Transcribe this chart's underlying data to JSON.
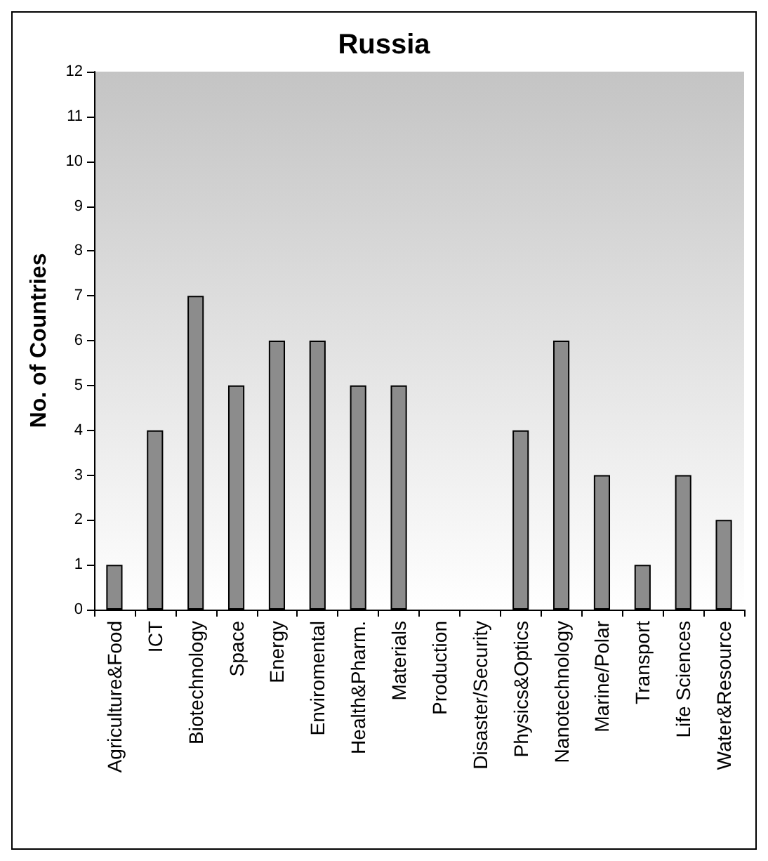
{
  "chart_data": {
    "type": "bar",
    "title": "Russia",
    "ylabel": "No. of Countries",
    "categories": [
      "Agriculture&Food",
      "ICT",
      "Biotechnology",
      "Space",
      "Energy",
      "Enviromental",
      "Health&Pharm.",
      "Materials",
      "Production",
      "Disaster/Security",
      "Physics&Optics",
      "Nanotechnology",
      "Marine/Polar",
      "Transport",
      "Life Sciences",
      "Water&Resource"
    ],
    "values": [
      1,
      4,
      7,
      5,
      6,
      6,
      5,
      5,
      0,
      0,
      4,
      6,
      3,
      1,
      3,
      2
    ],
    "color": "#8c8c8c",
    "ylim": [
      0,
      12
    ],
    "yticks": [
      0,
      1,
      2,
      3,
      4,
      5,
      6,
      7,
      8,
      9,
      10,
      11,
      12
    ],
    "grid": false
  }
}
